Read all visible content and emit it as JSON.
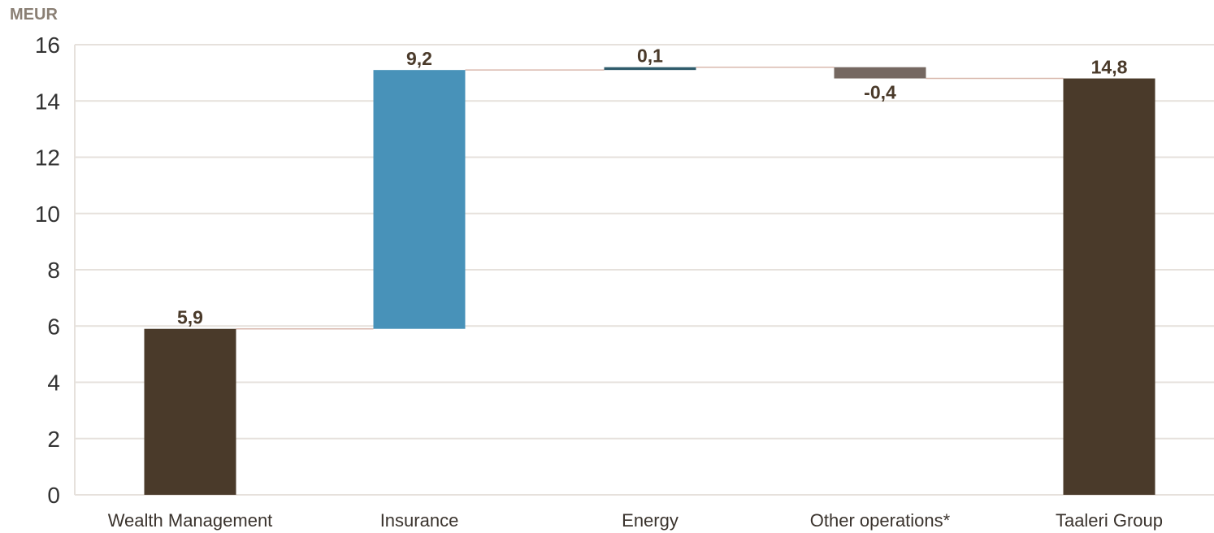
{
  "chart_data": {
    "type": "bar",
    "subtype": "waterfall",
    "unit_label": "MEUR",
    "categories": [
      "Wealth Management",
      "Insurance",
      "Energy",
      "Other operations*",
      "Taaleri Group"
    ],
    "values": [
      5.9,
      9.2,
      0.1,
      -0.4,
      14.8
    ],
    "bar_types": [
      "total",
      "delta",
      "delta",
      "delta",
      "total"
    ],
    "data_labels": [
      "5,9",
      "9,2",
      "0,1",
      "-0,4",
      "14,8"
    ],
    "colors": [
      "#4a3a2a",
      "#4892b9",
      "#2f5b6b",
      "#756861",
      "#4a3a2a"
    ],
    "ylim": [
      0,
      16
    ],
    "yticks": [
      "0",
      "2",
      "4",
      "6",
      "8",
      "10",
      "12",
      "14",
      "16"
    ],
    "grid": true,
    "connector_lines": true
  }
}
